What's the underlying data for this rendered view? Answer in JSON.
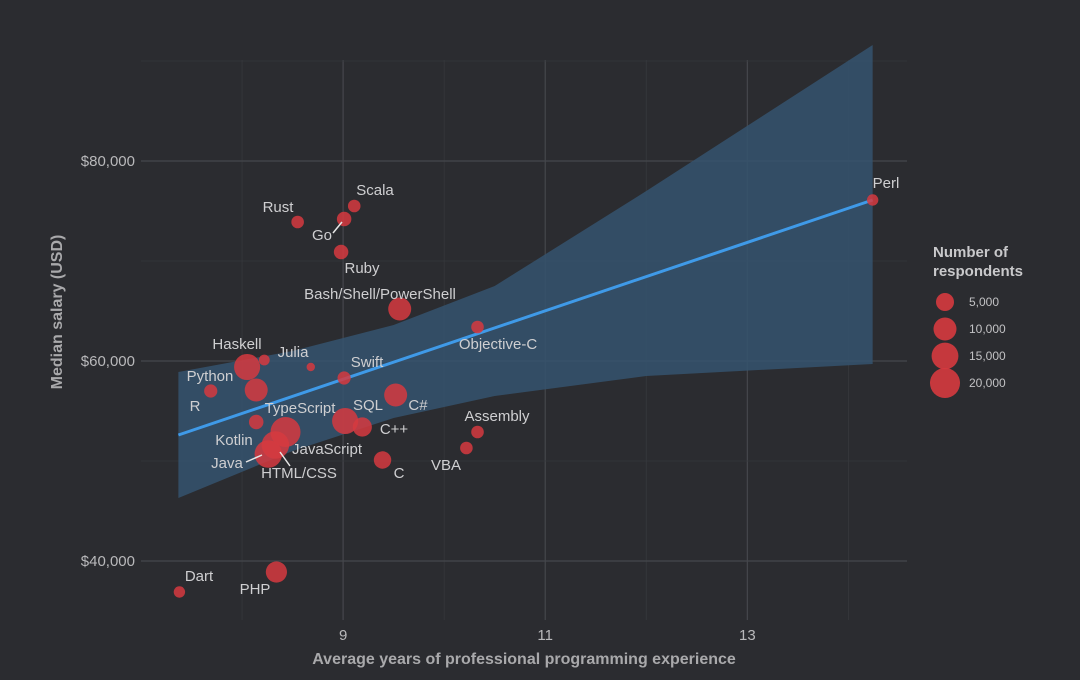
{
  "chart_data": {
    "type": "scatter",
    "title": "",
    "xlabel": "Average years of professional programming experience",
    "ylabel": "Median salary (USD)",
    "xlim": [
      7.0,
      14.58
    ],
    "ylim": [
      34100,
      90100
    ],
    "x_ticks": [
      9,
      11,
      13
    ],
    "x_tick_labels": [
      "9",
      "11",
      "13"
    ],
    "y_ticks": [
      40000,
      60000,
      80000
    ],
    "y_tick_labels": [
      "$40,000",
      "$60,000",
      "$80,000"
    ],
    "grid": true,
    "points": [
      {
        "label": "Perl",
        "x": 14.24,
        "y": 76100,
        "respondents": 1000
      },
      {
        "label": "Scala",
        "x": 9.11,
        "y": 75500,
        "respondents": 1500
      },
      {
        "label": "Rust",
        "x": 8.55,
        "y": 73900,
        "respondents": 1500
      },
      {
        "label": "Go",
        "x": 9.01,
        "y": 74200,
        "respondents": 2500
      },
      {
        "label": "Ruby",
        "x": 8.98,
        "y": 70900,
        "respondents": 2500
      },
      {
        "label": "Bash/Shell/PowerShell",
        "x": 9.56,
        "y": 65200,
        "respondents": 10000
      },
      {
        "label": "Objective-C",
        "x": 10.33,
        "y": 63400,
        "respondents": 1500
      },
      {
        "label": "Haskell",
        "x": 8.22,
        "y": 60100,
        "respondents": 800
      },
      {
        "label": "Julia",
        "x": 8.68,
        "y": 59400,
        "respondents": 200
      },
      {
        "label": "Python",
        "x": 8.05,
        "y": 59400,
        "respondents": 14000
      },
      {
        "label": "R",
        "x": 7.69,
        "y": 57000,
        "respondents": 1800
      },
      {
        "label": "TypeScript",
        "x": 8.14,
        "y": 57100,
        "respondents": 10000
      },
      {
        "label": "Swift",
        "x": 9.01,
        "y": 58300,
        "respondents": 1800
      },
      {
        "label": "SQL",
        "x": 9.02,
        "y": 54000,
        "respondents": 14000
      },
      {
        "label": "C#",
        "x": 9.52,
        "y": 56600,
        "respondents": 10000
      },
      {
        "label": "C++",
        "x": 9.19,
        "y": 53400,
        "respondents": 6000
      },
      {
        "label": "Kotlin",
        "x": 8.14,
        "y": 53900,
        "respondents": 2500
      },
      {
        "label": "JavaScript",
        "x": 8.43,
        "y": 52900,
        "respondents": 20000
      },
      {
        "label": "Java",
        "x": 8.33,
        "y": 51600,
        "respondents": 16000
      },
      {
        "label": "HTML/CSS",
        "x": 8.26,
        "y": 50700,
        "respondents": 16000
      },
      {
        "label": "C",
        "x": 9.39,
        "y": 50100,
        "respondents": 4500
      },
      {
        "label": "Assembly",
        "x": 10.33,
        "y": 52900,
        "respondents": 1500
      },
      {
        "label": "VBA",
        "x": 10.22,
        "y": 51300,
        "respondents": 1500
      },
      {
        "label": "Dart",
        "x": 7.38,
        "y": 36900,
        "respondents": 1000
      },
      {
        "label": "PHP",
        "x": 8.34,
        "y": 38900,
        "respondents": 8000
      }
    ],
    "trend_line": {
      "x": [
        7.37,
        14.24
      ],
      "y": [
        52600,
        76100
      ]
    },
    "confidence_band": [
      {
        "x": 7.37,
        "lower": 46300,
        "upper": 58900
      },
      {
        "x": 8.5,
        "lower": 51000,
        "upper": 61000
      },
      {
        "x": 9.5,
        "lower": 54300,
        "upper": 63600
      },
      {
        "x": 10.5,
        "lower": 56500,
        "upper": 67500
      },
      {
        "x": 12.0,
        "lower": 58500,
        "upper": 77000
      },
      {
        "x": 14.24,
        "lower": 59700,
        "upper": 91600
      }
    ],
    "legend": {
      "title_line1": "Number of",
      "title_line2": "respondents",
      "placement": "right",
      "entries": [
        {
          "value": 5000,
          "label": "5,000"
        },
        {
          "value": 10000,
          "label": "10,000"
        },
        {
          "value": 15000,
          "label": "15,000"
        },
        {
          "value": 20000,
          "label": "20,000"
        }
      ]
    },
    "colors": {
      "point": "#d63a3f",
      "line": "#3f9ae8",
      "band": "#35536f",
      "background": "#2b2c30",
      "grid": "#3d3f44"
    }
  }
}
